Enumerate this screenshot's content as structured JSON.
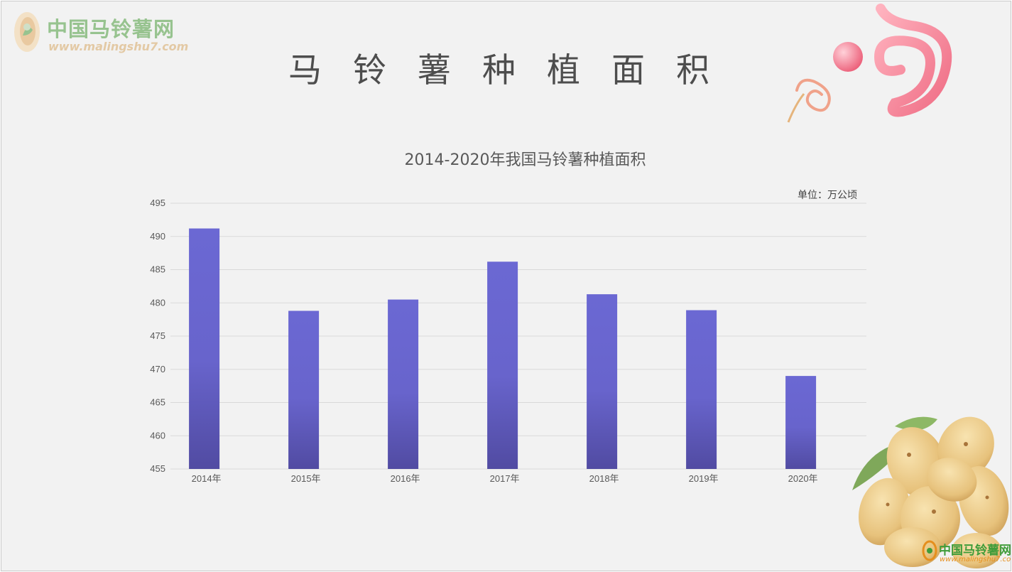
{
  "header": {
    "logo_name": "中国马铃薯网",
    "logo_url": "www.malingshu7.com",
    "page_title": "马铃薯种植面积"
  },
  "footer": {
    "logo_name": "中国马铃薯网",
    "logo_url": "www.malingshu7.com"
  },
  "colors": {
    "background": "#f2f2f2",
    "bar_top": "#6b68d3",
    "bar_bottom": "#514ba2",
    "grid": "#d9d9d9",
    "logo_green": "#97c38f",
    "deco_pink": "#f37f92"
  },
  "chart_data": {
    "type": "bar",
    "title": "2014-2020年我国马铃薯种植面积",
    "unit": "单位：万公顷",
    "categories": [
      "2014年",
      "2015年",
      "2016年",
      "2017年",
      "2018年",
      "2019年",
      "2020年"
    ],
    "values": [
      491.2,
      478.8,
      480.5,
      486.2,
      481.3,
      478.9,
      469.0
    ],
    "y_ticks": [
      "455",
      "460",
      "465",
      "470",
      "475",
      "480",
      "485",
      "490",
      "495"
    ],
    "ylim": [
      455,
      495
    ],
    "grid": true,
    "legend": "none"
  }
}
